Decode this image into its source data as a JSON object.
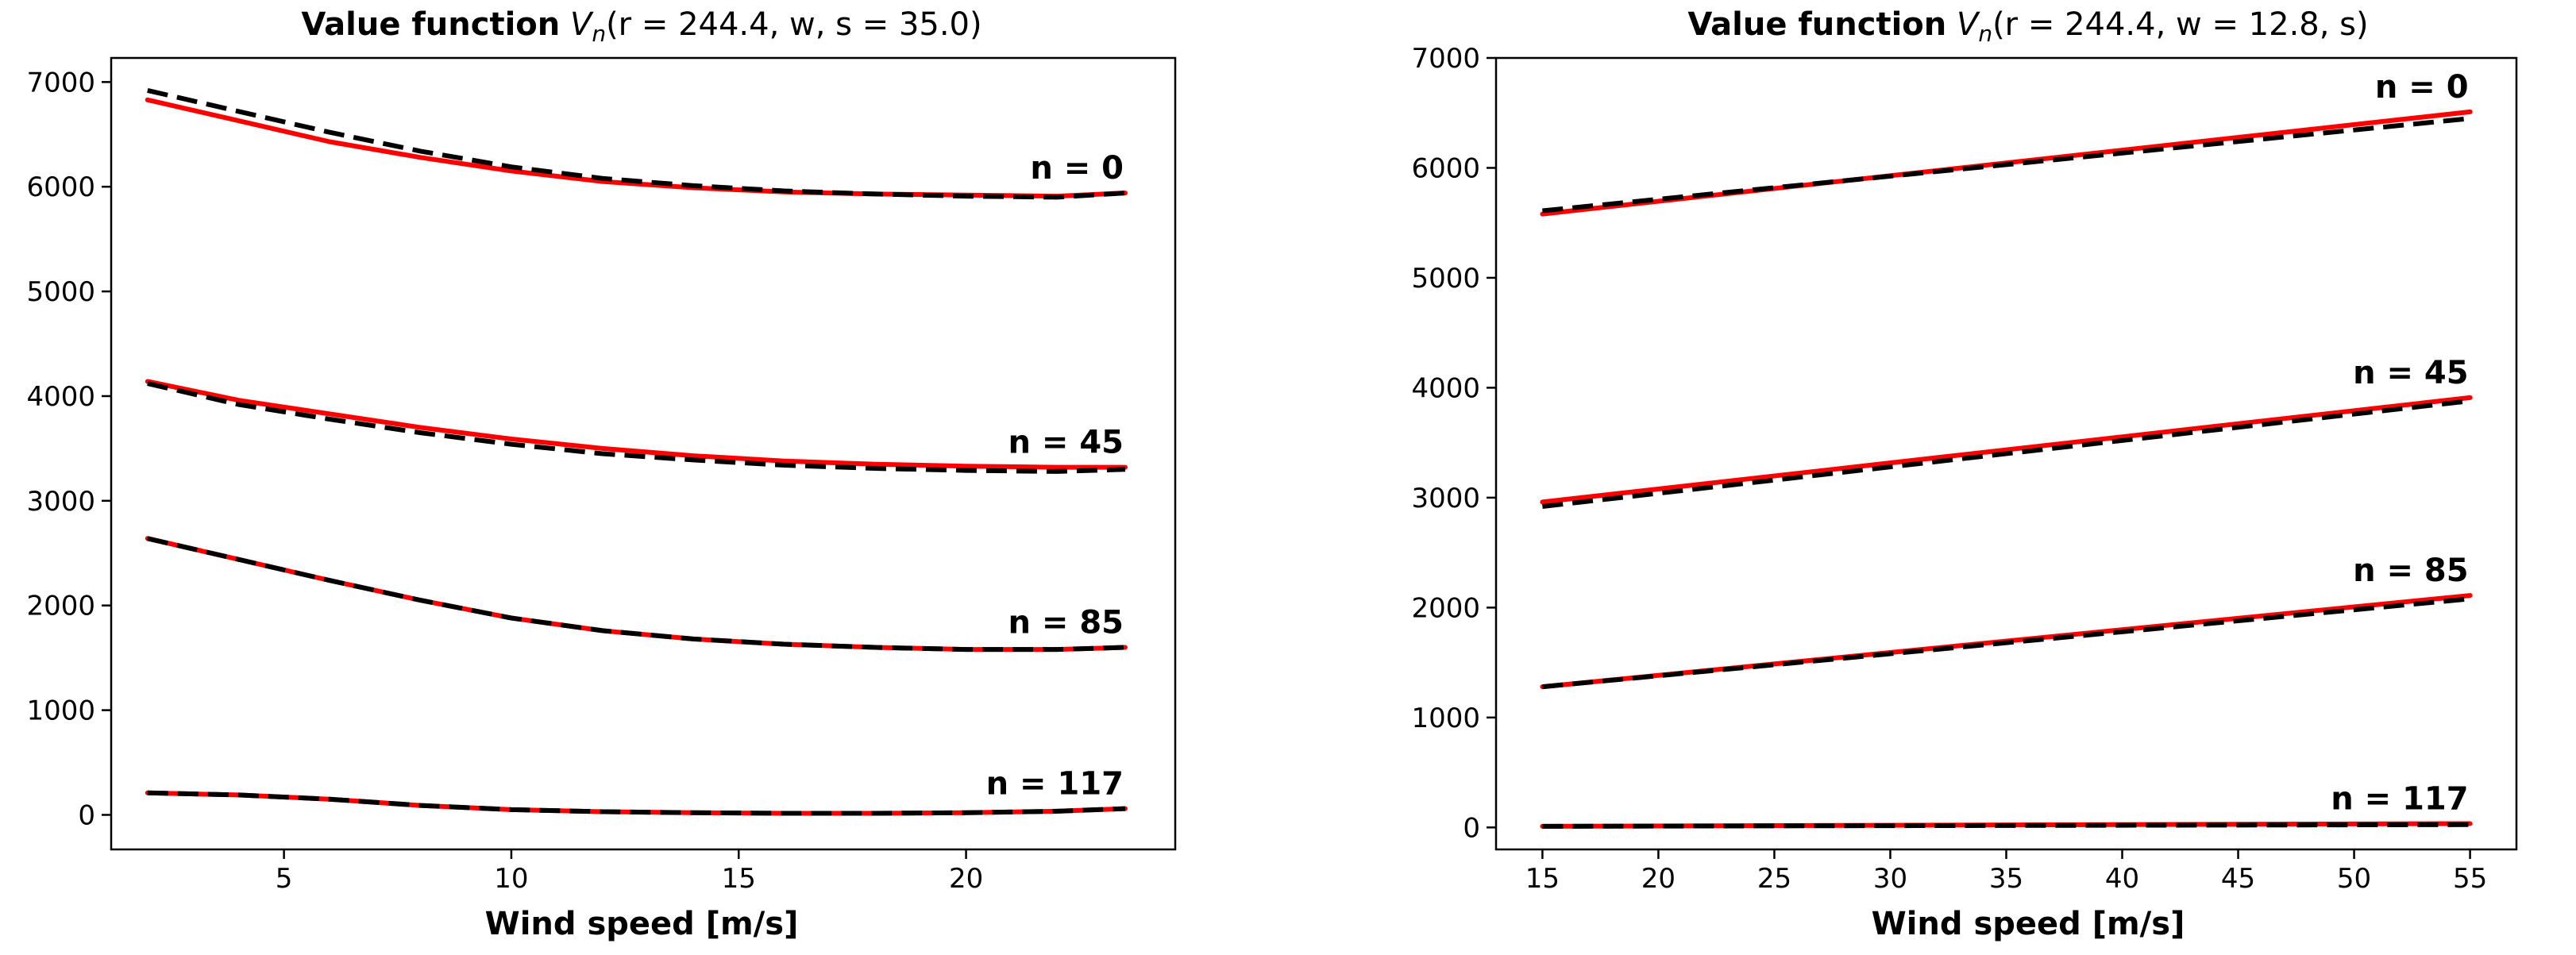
{
  "chart_data": [
    {
      "type": "line",
      "title": "Value function V_n(r = 244.4, w, s = 35.0)",
      "title_parts": {
        "bold": "Value function",
        "V": "V",
        "n": "n",
        "args": "(r = 244.4, w, s = 35.0)"
      },
      "xlabel": "Wind speed [m/s]",
      "ylabel": "",
      "xlim": [
        1.2,
        24.6
      ],
      "ylim": [
        -330,
        7230
      ],
      "xticks": [
        5,
        10,
        15,
        20
      ],
      "yticks": [
        0,
        1000,
        2000,
        3000,
        4000,
        5000,
        6000,
        7000
      ],
      "grid": false,
      "colors": {
        "model": "#ff0000",
        "reference": "#000000"
      },
      "x": [
        2,
        4,
        6,
        8,
        10,
        12,
        14,
        16,
        18,
        20,
        22,
        23.5
      ],
      "series": [
        {
          "label": "n = 0",
          "red": [
            6830,
            6630,
            6430,
            6280,
            6150,
            6050,
            5990,
            5950,
            5930,
            5920,
            5910,
            5940
          ],
          "black": [
            6920,
            6720,
            6520,
            6340,
            6190,
            6080,
            6010,
            5960,
            5930,
            5910,
            5900,
            5940
          ]
        },
        {
          "label": "n = 45",
          "red": [
            4140,
            3960,
            3830,
            3700,
            3590,
            3500,
            3430,
            3380,
            3350,
            3330,
            3320,
            3320
          ],
          "black": [
            4120,
            3920,
            3780,
            3650,
            3540,
            3450,
            3390,
            3340,
            3310,
            3290,
            3280,
            3300
          ]
        },
        {
          "label": "n = 85",
          "red": [
            2640,
            2440,
            2240,
            2050,
            1880,
            1760,
            1680,
            1630,
            1600,
            1580,
            1580,
            1600
          ],
          "black": [
            2640,
            2440,
            2240,
            2050,
            1880,
            1760,
            1680,
            1630,
            1600,
            1580,
            1580,
            1600
          ]
        },
        {
          "label": "n = 117",
          "red": [
            210,
            190,
            150,
            90,
            50,
            30,
            20,
            15,
            15,
            20,
            35,
            60
          ],
          "black": [
            210,
            190,
            150,
            90,
            50,
            30,
            20,
            15,
            15,
            20,
            35,
            60
          ]
        }
      ]
    },
    {
      "type": "line",
      "title": "Value function V_n(r = 244.4, w = 12.8, s)",
      "title_parts": {
        "bold": "Value function",
        "V": "V",
        "n": "n",
        "args": "(r = 244.4, w = 12.8, s)"
      },
      "xlabel": "Wind speed [m/s]",
      "ylabel": "",
      "xlim": [
        13,
        57
      ],
      "ylim": [
        -200,
        7000
      ],
      "xticks": [
        15,
        20,
        25,
        30,
        35,
        40,
        45,
        50,
        55
      ],
      "yticks": [
        0,
        1000,
        2000,
        3000,
        4000,
        5000,
        6000,
        7000
      ],
      "grid": false,
      "colors": {
        "model": "#ff0000",
        "reference": "#000000"
      },
      "x": [
        15,
        55
      ],
      "series": [
        {
          "label": "n = 0",
          "red": [
            5580,
            6510
          ],
          "black": [
            5610,
            6450
          ]
        },
        {
          "label": "n = 45",
          "red": [
            2960,
            3910
          ],
          "black": [
            2920,
            3880
          ]
        },
        {
          "label": "n = 85",
          "red": [
            1280,
            2110
          ],
          "black": [
            1280,
            2080
          ]
        },
        {
          "label": "n = 117",
          "red": [
            10,
            35
          ],
          "black": [
            10,
            25
          ]
        }
      ]
    }
  ]
}
